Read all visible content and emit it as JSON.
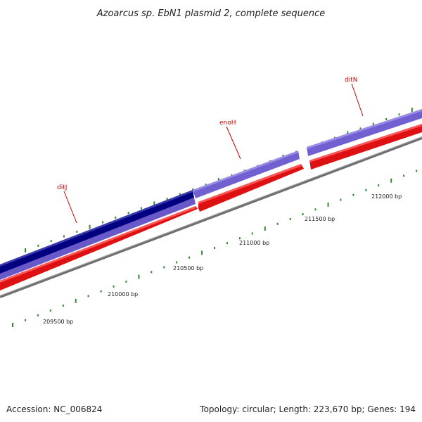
{
  "title": "Azoarcus sp. EbN1 plasmid 2, complete sequence",
  "footer": {
    "accession": "Accession: NC_006824",
    "summary": "Topology: circular; Length: 223,670 bp; Genes: 194"
  },
  "genes": [
    {
      "name": "ditJ"
    },
    {
      "name": "enoH"
    },
    {
      "name": "ditN"
    }
  ],
  "ticks": [
    {
      "label": "209500 bp"
    },
    {
      "label": "210000 bp"
    },
    {
      "label": "210500 bp"
    },
    {
      "label": "211000 bp"
    },
    {
      "label": "211500 bp"
    },
    {
      "label": "212000 bp"
    }
  ],
  "colors": {
    "background": "#ffffff",
    "title_text": "#222222",
    "gene_label": "#cc0000",
    "cds_forward_dark": "#000080",
    "cds_forward": "#7060d0",
    "cds_reverse": "#ee1111",
    "backbone": "#888888",
    "tick_marks": "#2e8b2e"
  }
}
